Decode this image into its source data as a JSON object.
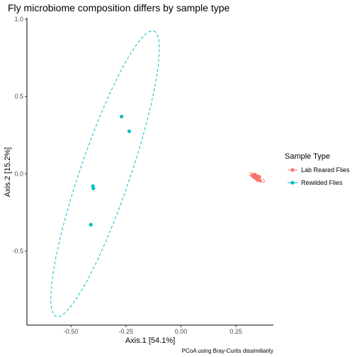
{
  "chart_data": {
    "type": "scatter",
    "title": "Fly microbiome composition differs by sample type",
    "xlabel": "Axis.1   [54.1%]",
    "ylabel": "Axis.2   [15.2%]",
    "caption": "PCoA using Bray-Curtis dissimiliarity",
    "xlim": [
      -0.7,
      0.42
    ],
    "ylim": [
      -0.98,
      1.01
    ],
    "x_ticks": [
      {
        "value": -0.5,
        "label": "-0.50"
      },
      {
        "value": -0.25,
        "label": "-0.25"
      },
      {
        "value": 0.0,
        "label": "0.00"
      },
      {
        "value": 0.25,
        "label": "0.25"
      }
    ],
    "y_ticks": [
      {
        "value": -0.5,
        "label": "-0.5"
      },
      {
        "value": 0.0,
        "label": "0.0"
      },
      {
        "value": 0.5,
        "label": "0.5"
      },
      {
        "value": 1.0,
        "label": "1.0"
      }
    ],
    "grid": false,
    "legend": {
      "title": "Sample Type",
      "position": "right"
    },
    "series": [
      {
        "name": "Lab Reared Flies",
        "color": "#F8766D",
        "points": [
          {
            "x": 0.325,
            "y": -0.01
          },
          {
            "x": 0.33,
            "y": -0.02
          },
          {
            "x": 0.335,
            "y": -0.005
          },
          {
            "x": 0.34,
            "y": -0.03
          },
          {
            "x": 0.345,
            "y": -0.015
          },
          {
            "x": 0.35,
            "y": -0.035
          },
          {
            "x": 0.355,
            "y": -0.02
          },
          {
            "x": 0.36,
            "y": -0.045
          },
          {
            "x": 0.338,
            "y": -0.025
          },
          {
            "x": 0.348,
            "y": -0.04
          }
        ],
        "ellipse": {
          "cx": 0.345,
          "cy": -0.025,
          "rx": 0.045,
          "ry": 0.013,
          "angle_deg": -37
        }
      },
      {
        "name": "Rewilded Flies",
        "color": "#00BFC4",
        "points": [
          {
            "x": -0.27,
            "y": 0.37
          },
          {
            "x": -0.235,
            "y": 0.275
          },
          {
            "x": -0.4,
            "y": -0.08
          },
          {
            "x": -0.398,
            "y": -0.095
          },
          {
            "x": -0.41,
            "y": -0.33
          }
        ],
        "ellipse": {
          "cx": -0.345,
          "cy": 0.0,
          "rx": 0.95,
          "ry": 0.115,
          "angle_deg": 76.5
        }
      }
    ]
  }
}
